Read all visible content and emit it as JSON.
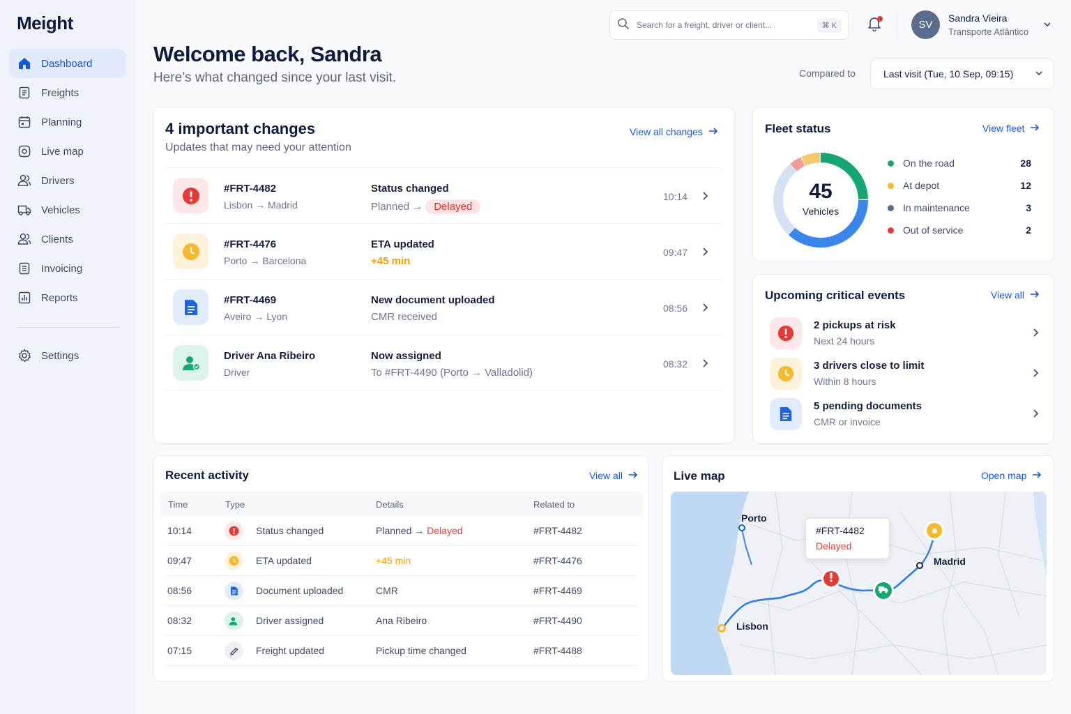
{
  "app": {
    "name": "Meight"
  },
  "nav": {
    "items": [
      {
        "label": "Dashboard",
        "icon": "home-icon",
        "active": true
      },
      {
        "label": "Freights",
        "icon": "document-icon"
      },
      {
        "label": "Planning",
        "icon": "calendar-icon"
      },
      {
        "label": "Live map",
        "icon": "map-pin-icon"
      },
      {
        "label": "Drivers",
        "icon": "users-icon"
      },
      {
        "label": "Vehicles",
        "icon": "truck-icon"
      },
      {
        "label": "Clients",
        "icon": "users-icon"
      },
      {
        "label": "Invoicing",
        "icon": "invoice-icon"
      },
      {
        "label": "Reports",
        "icon": "chart-icon"
      }
    ],
    "settings": {
      "label": "Settings",
      "icon": "gear-icon"
    }
  },
  "header": {
    "search_placeholder": "Search for a freight, driver or client...",
    "shortcut": "⌘ K",
    "user": {
      "initials": "SV",
      "name": "Sandra Vieira",
      "company": "Transporte Atlântico"
    }
  },
  "welcome": {
    "title": "Welcome back, Sandra",
    "subtitle": "Here’s what changed since your last visit.",
    "compared_label": "Compared to",
    "compared_value": "Last visit (Tue, 10 Sep, 09:15)"
  },
  "changes": {
    "title": "4 important changes",
    "subtitle": "Updates that may need your attention",
    "link": "View all changes",
    "items": [
      {
        "id": "#FRT-4482",
        "route": "Lisbon → Madrid",
        "what": "Status changed",
        "detail_prefix": "Planned →",
        "detail_highlight": "Delayed",
        "time": "10:14",
        "icon": "alert-icon"
      },
      {
        "id": "#FRT-4476",
        "route": "Porto → Barcelona",
        "what": "ETA updated",
        "detail_highlight": "+45 min",
        "time": "09:47",
        "icon": "clock-icon"
      },
      {
        "id": "#FRT-4469",
        "route": "Aveiro → Lyon",
        "what": "New document uploaded",
        "detail": "CMR received",
        "time": "08:56",
        "icon": "document-icon"
      },
      {
        "id": "Driver Ana Ribeiro",
        "route": "Driver",
        "what": "Now assigned",
        "detail": "To #FRT-4490 (Porto → Valladolid)",
        "time": "08:32",
        "icon": "driver-icon"
      }
    ]
  },
  "fleet": {
    "title": "Fleet status",
    "link": "View fleet",
    "total": "45",
    "total_label": "Vehicles",
    "legend": [
      {
        "label": "On the road",
        "value": 28,
        "color": "#17a673"
      },
      {
        "label": "At depot",
        "value": 12,
        "color": "#f5b82e"
      },
      {
        "label": "In maintenance",
        "value": 3,
        "color": "#5b6b8c"
      },
      {
        "label": "Out of service",
        "value": 2,
        "color": "#e53935"
      }
    ]
  },
  "events": {
    "title": "Upcoming critical events",
    "link": "View all",
    "items": [
      {
        "title": "2 pickups at risk",
        "sub": "Next 24 hours",
        "icon": "alert-icon"
      },
      {
        "title": "3 drivers close to limit",
        "sub": "Within 8 hours",
        "icon": "clock-icon"
      },
      {
        "title": "5 pending documents",
        "sub": "CMR or invoice",
        "icon": "document-icon"
      }
    ]
  },
  "activity": {
    "title": "Recent activity",
    "link": "View all",
    "columns": [
      "Time",
      "Type",
      "Details",
      "Related to"
    ],
    "rows": [
      {
        "time": "10:14",
        "type": "Status changed",
        "details_prefix": "Planned →",
        "details_highlight": "Delayed",
        "related": "#FRT-4482",
        "icon": "alert-icon"
      },
      {
        "time": "09:47",
        "type": "ETA updated",
        "details_highlight": "+45 min",
        "related": "#FRT-4476",
        "icon": "clock-icon"
      },
      {
        "time": "08:56",
        "type": "Document uploaded",
        "details": "CMR",
        "related": "#FRT-4469",
        "icon": "document-icon"
      },
      {
        "time": "08:32",
        "type": "Driver assigned",
        "details": "Ana Ribeiro",
        "related": "#FRT-4490",
        "icon": "driver-icon"
      },
      {
        "time": "07:15",
        "type": "Freight updated",
        "details": "Pickup time changed",
        "related": "#FRT-4488",
        "icon": "pencil-icon"
      }
    ]
  },
  "livemap": {
    "title": "Live map",
    "link": "Open map",
    "cities": [
      "Porto",
      "Madrid",
      "Lisbon"
    ],
    "tooltip_id": "#FRT-4482",
    "tooltip_status": "Delayed"
  }
}
